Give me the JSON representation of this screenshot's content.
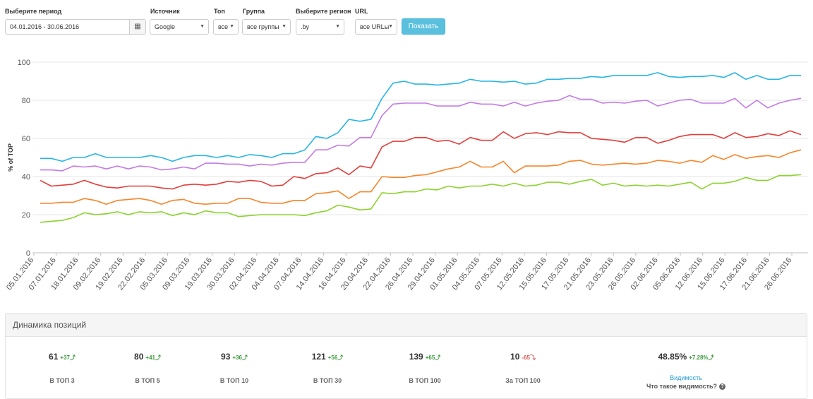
{
  "filters": {
    "period": {
      "label": "Выберите период",
      "value": "04.01.2016 - 30.06.2016"
    },
    "source": {
      "label": "Источник",
      "value": "Google"
    },
    "top": {
      "label": "Топ",
      "value": "все"
    },
    "group": {
      "label": "Группа",
      "value": "все группы"
    },
    "region": {
      "label": "Выберите регион",
      "value": ".by"
    },
    "url": {
      "label": "URL",
      "value": "все URLы"
    },
    "show_button": "Показать"
  },
  "chart_data": {
    "type": "line",
    "ylabel": "% of TOP",
    "ylim": [
      0,
      100
    ],
    "yticks": [
      0,
      20,
      40,
      60,
      80,
      100
    ],
    "grid": true,
    "x_tick_labels": [
      "05.01.2016",
      "07.01.2016",
      "18.01.2016",
      "09.02.2016",
      "19.02.2016",
      "22.02.2016",
      "05.03.2016",
      "09.03.2016",
      "19.03.2016",
      "30.03.2016",
      "02.04.2016",
      "04.04.2016",
      "07.04.2016",
      "14.04.2016",
      "16.04.2016",
      "20.04.2016",
      "22.04.2016",
      "26.04.2016",
      "29.04.2016",
      "01.05.2016",
      "04.05.2016",
      "07.05.2016",
      "12.05.2016",
      "15.05.2016",
      "17.05.2016",
      "21.05.2016",
      "23.05.2016",
      "26.05.2016",
      "02.06.2016",
      "05.06.2016",
      "12.06.2016",
      "15.06.2016",
      "17.06.2016",
      "21.06.2016",
      "26.06.2016"
    ],
    "series": [
      {
        "color": "#27b5e3",
        "values": [
          49.5,
          49.5,
          48,
          50,
          50,
          52,
          50,
          50,
          50,
          50,
          51,
          50,
          48,
          50,
          51,
          51,
          50,
          51,
          50,
          51.5,
          51,
          50,
          52,
          52,
          54,
          61,
          60,
          63,
          70,
          69,
          70,
          81,
          89,
          90,
          88.5,
          88.5,
          88,
          88.5,
          89,
          91,
          90,
          90,
          89.5,
          90,
          88.5,
          89,
          91,
          91,
          91.5,
          91.5,
          92.5,
          92,
          93,
          93,
          93,
          93,
          94.5,
          92.5,
          92,
          92.5,
          92.5,
          93,
          92,
          94.5,
          91,
          93,
          91,
          91,
          93,
          93
        ]
      },
      {
        "color": "#c37be4",
        "values": [
          43.5,
          43.5,
          43,
          45.5,
          45,
          45.5,
          44,
          45.5,
          44,
          45.5,
          45,
          43.5,
          44,
          45,
          44,
          47,
          47,
          46.5,
          46.5,
          45.5,
          46.5,
          46,
          47,
          47.5,
          47.5,
          54,
          54,
          56.5,
          56,
          60.5,
          60.5,
          72,
          78,
          78.5,
          78.5,
          78.5,
          77,
          77,
          77,
          79,
          78,
          78,
          77,
          79,
          77,
          78.5,
          79.5,
          80,
          82.5,
          80.5,
          80.5,
          78.5,
          79,
          78.5,
          79.5,
          80,
          77,
          78.5,
          80,
          80.5,
          78.5,
          78.5,
          78.5,
          81,
          76,
          80,
          76,
          78.5,
          80,
          81
        ]
      },
      {
        "color": "#e23e3b",
        "values": [
          38,
          35,
          35.5,
          36,
          38,
          36,
          34.5,
          34,
          35,
          35,
          35,
          34,
          33.5,
          35.5,
          36,
          35.5,
          36,
          37.5,
          37,
          38,
          37.5,
          35,
          35.5,
          40,
          39,
          41.5,
          42,
          44.5,
          41,
          45.5,
          44.5,
          55.5,
          58.5,
          58.5,
          60.5,
          60.5,
          58.5,
          59,
          57,
          60.5,
          59,
          59,
          63.5,
          60,
          62.5,
          63,
          62,
          63.5,
          63,
          63,
          60,
          59.5,
          59,
          58,
          60.5,
          60.5,
          57.5,
          59,
          61,
          62,
          62,
          62,
          60,
          63,
          60.5,
          61,
          62.5,
          61.5,
          64,
          62
        ]
      },
      {
        "color": "#f8852a",
        "values": [
          26,
          26,
          26.5,
          26.5,
          28.5,
          27.5,
          25.5,
          27.5,
          28,
          28.5,
          27.5,
          25.5,
          27.5,
          28,
          26,
          25.5,
          26,
          26,
          28.5,
          28.5,
          26.5,
          26,
          26,
          27.5,
          27.5,
          31,
          31.5,
          32.5,
          28.5,
          32,
          32,
          40,
          39.5,
          39.5,
          40.5,
          41,
          42.5,
          44,
          45,
          48,
          45,
          45,
          48,
          42,
          45.5,
          45.5,
          45.5,
          46,
          48,
          48.5,
          46.5,
          46,
          46.5,
          47,
          46.5,
          47,
          48.5,
          48,
          47,
          48.5,
          47.5,
          51,
          49,
          51.5,
          49.5,
          50.5,
          51,
          50,
          52.5,
          54
        ]
      },
      {
        "color": "#8dd22f",
        "values": [
          16,
          16.5,
          17,
          18.5,
          21,
          20,
          20.5,
          21.5,
          20,
          21.5,
          21,
          21.5,
          19.5,
          21,
          20,
          22,
          21,
          21,
          19,
          19.5,
          20,
          20,
          20,
          20,
          19.5,
          21,
          22,
          25,
          24,
          22.5,
          23,
          31.5,
          31,
          32,
          32,
          33.5,
          33,
          35,
          34,
          35,
          35,
          36,
          35,
          36.5,
          35,
          35.5,
          37,
          37,
          36,
          37.5,
          38.5,
          35.5,
          36.5,
          35,
          35.5,
          35,
          35.5,
          35,
          36,
          37,
          33.5,
          36.5,
          36.5,
          37.5,
          39.5,
          38,
          38,
          40.5,
          40.5,
          41
        ]
      }
    ]
  },
  "dynamics": {
    "title": "Динамика позиций",
    "stats": [
      {
        "value": "61",
        "delta": "+37",
        "arrow": "⤴",
        "caption": "В ТОП 3"
      },
      {
        "value": "80",
        "delta": "+41",
        "arrow": "⤴",
        "caption": "В ТОП 5"
      },
      {
        "value": "93",
        "delta": "+36",
        "arrow": "⤴",
        "caption": "В ТОП 10"
      },
      {
        "value": "121",
        "delta": "+56",
        "arrow": "⤴",
        "caption": "В ТОП 30"
      },
      {
        "value": "139",
        "delta": "+65",
        "arrow": "⤴",
        "caption": "В ТОП 100"
      },
      {
        "value": "10",
        "delta": "-65",
        "arrow": "⤵",
        "caption": "За ТОП 100",
        "negative": true
      }
    ],
    "visibility": {
      "value": "48.85%",
      "delta": "+7.28%",
      "arrow": "⤴",
      "link": "Видимость",
      "help": "Что такое видимость?",
      "help_icon": "question-circle-icon"
    }
  }
}
